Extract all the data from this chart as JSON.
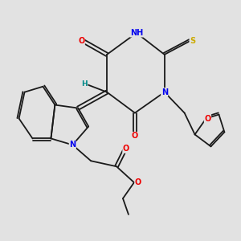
{
  "background_color": "#e2e2e2",
  "fig_width": 3.0,
  "fig_height": 3.0,
  "dpi": 100,
  "atom_colors": {
    "C": "#1a1a1a",
    "N": "#0000ee",
    "O": "#ee0000",
    "S": "#ccaa00",
    "H": "#008888"
  },
  "bond_color": "#1a1a1a",
  "bond_width": 1.3,
  "font_size": 7.0
}
